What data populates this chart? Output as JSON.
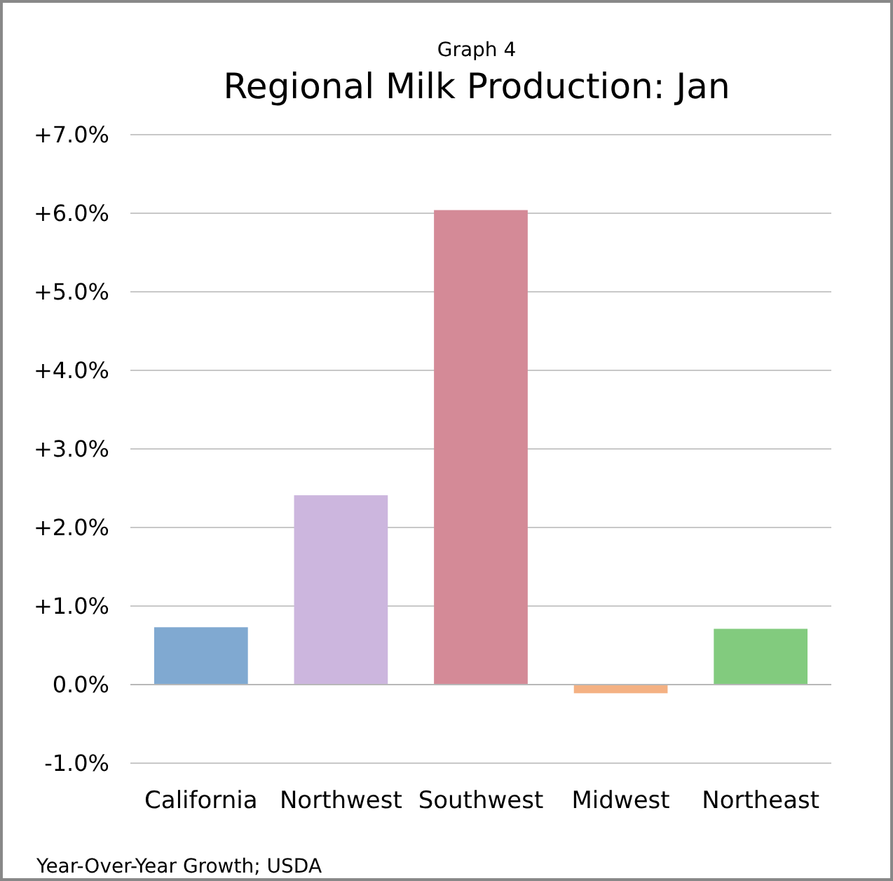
{
  "chart_data": {
    "type": "bar",
    "title": "Regional Milk Production: Jan",
    "subtitle": "Graph 4",
    "categories": [
      "California",
      "Northwest",
      "Southwest",
      "Midwest",
      "Northeast"
    ],
    "values": [
      0.73,
      2.41,
      6.04,
      -0.11,
      0.71
    ],
    "colors": [
      "#80a9d1",
      "#ccb6de",
      "#d48a97",
      "#f4b183",
      "#82cb7e"
    ],
    "ylim": [
      -1,
      7
    ],
    "yticks": [
      {
        "value": -1,
        "label": "-1.0%"
      },
      {
        "value": 0,
        "label": "0.0%"
      },
      {
        "value": 1,
        "label": "+1.0%"
      },
      {
        "value": 2,
        "label": "+2.0%"
      },
      {
        "value": 3,
        "label": "+3.0%"
      },
      {
        "value": 4,
        "label": "+4.0%"
      },
      {
        "value": 5,
        "label": "+5.0%"
      },
      {
        "value": 6,
        "label": "+6.0%"
      },
      {
        "value": 7,
        "label": "+7.0%"
      }
    ],
    "grid": "y",
    "annotations": [
      "Year-Over-Year Growth; USDA"
    ]
  }
}
